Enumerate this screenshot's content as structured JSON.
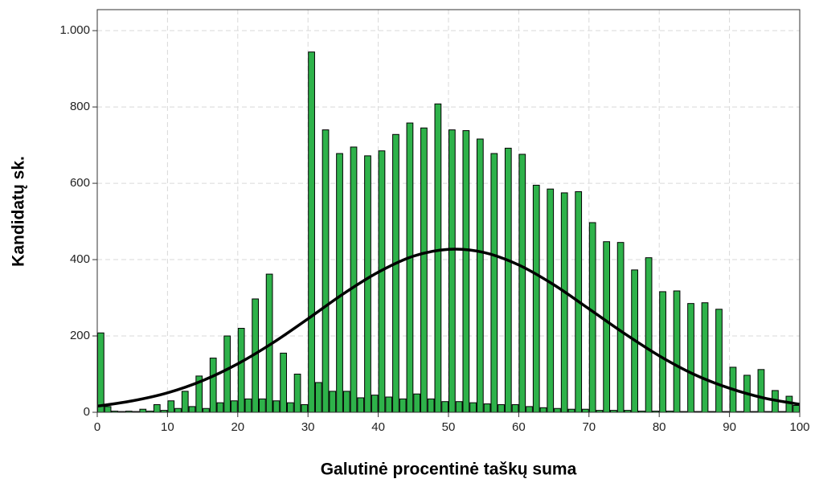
{
  "chart_data": {
    "type": "histogram",
    "x_label": "Galutinė procentinė taškų suma",
    "y_label": "Kandidatų sk.",
    "bins": [
      0,
      1,
      2,
      3,
      4,
      5,
      6,
      7,
      8,
      9,
      10,
      11,
      12,
      13,
      14,
      15,
      16,
      17,
      18,
      19,
      20,
      21,
      22,
      23,
      24,
      25,
      26,
      27,
      28,
      29,
      30,
      31,
      32,
      33,
      34,
      35,
      36,
      37,
      38,
      39,
      40,
      41,
      42,
      43,
      44,
      45,
      46,
      47,
      48,
      49,
      50,
      51,
      52,
      53,
      54,
      55,
      56,
      57,
      58,
      59,
      60,
      61,
      62,
      63,
      64,
      65,
      66,
      67,
      68,
      69,
      70,
      71,
      72,
      73,
      74,
      75,
      76,
      77,
      78,
      79,
      80,
      81,
      82,
      83,
      84,
      85,
      86,
      87,
      88,
      89,
      90,
      91,
      92,
      93,
      94,
      95,
      96,
      97,
      98,
      99,
      100
    ],
    "values": [
      208,
      15,
      3,
      2,
      3,
      2,
      8,
      3,
      20,
      5,
      30,
      10,
      55,
      15,
      95,
      10,
      142,
      25,
      200,
      30,
      220,
      35,
      297,
      35,
      362,
      30,
      155,
      25,
      100,
      20,
      944,
      78,
      740,
      55,
      678,
      55,
      695,
      38,
      672,
      45,
      685,
      40,
      728,
      35,
      758,
      48,
      745,
      35,
      808,
      28,
      740,
      28,
      738,
      25,
      716,
      22,
      678,
      20,
      692,
      20,
      676,
      15,
      595,
      12,
      585,
      10,
      575,
      8,
      578,
      8,
      497,
      5,
      447,
      5,
      445,
      5,
      373,
      3,
      405,
      3,
      316,
      3,
      318,
      2,
      285,
      2,
      287,
      2,
      270,
      2,
      118,
      2,
      97,
      2,
      112,
      2,
      57,
      2,
      42,
      18
    ],
    "color": "#2eb24a",
    "curve": {
      "x": [
        0,
        5,
        10,
        15,
        20,
        25,
        30,
        35,
        40,
        45,
        50,
        55,
        60,
        65,
        70,
        75,
        80,
        85,
        90,
        95,
        100
      ],
      "values": [
        16,
        30,
        51,
        83,
        127,
        182,
        245,
        310,
        367,
        409,
        427,
        419,
        386,
        334,
        271,
        207,
        148,
        99,
        63,
        37,
        21
      ],
      "color": "#000000"
    },
    "xlim": [
      0,
      100
    ],
    "xticks": [
      0,
      10,
      20,
      30,
      40,
      50,
      60,
      70,
      80,
      90,
      100
    ],
    "ylim": [
      0,
      1055
    ],
    "yticks": [
      0,
      200,
      400,
      600,
      800,
      {
        "value": 1000,
        "label": "1.000"
      }
    ],
    "grid": true
  }
}
